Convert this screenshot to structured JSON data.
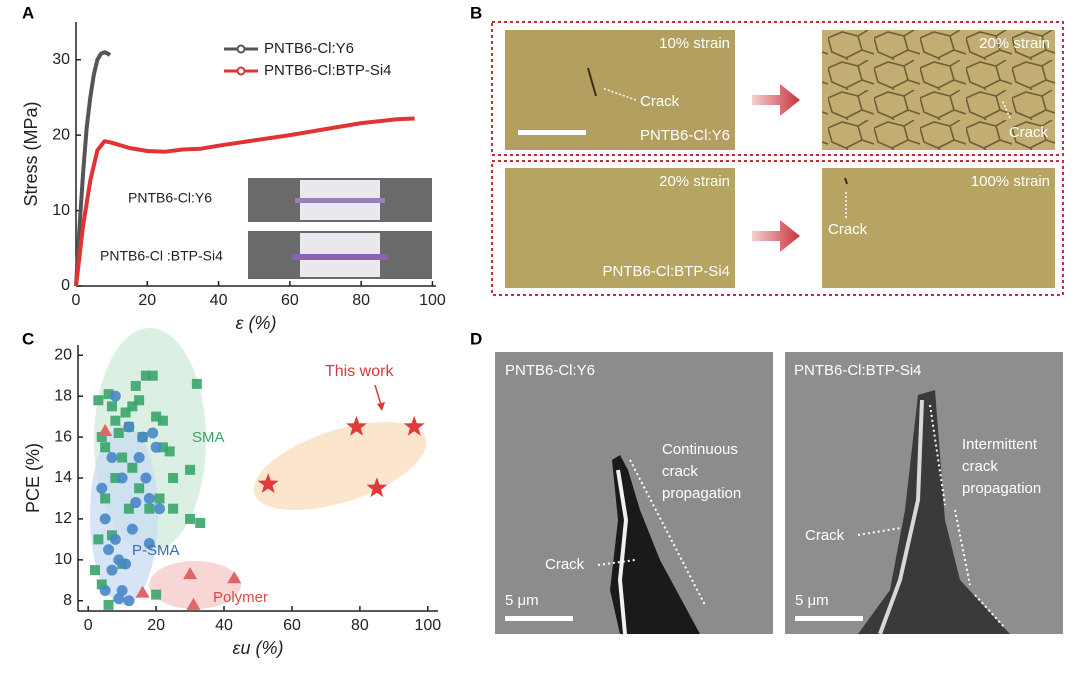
{
  "panel_labels": [
    "A",
    "B",
    "C",
    "D"
  ],
  "chart_data": [
    {
      "type": "line",
      "xlabel": "ε (%)",
      "ylabel": "Stress (MPa)",
      "xlim": [
        0,
        101
      ],
      "ylim": [
        0,
        35
      ],
      "xticks": [
        0,
        20,
        40,
        60,
        80,
        100
      ],
      "yticks": [
        0,
        10,
        20,
        30
      ],
      "legend": "upper right",
      "annotations": [
        "PNTB6-Cl:Y6",
        "PNTB6-Cl :BTP-Si4"
      ],
      "series": [
        {
          "name": "PNTB6-Cl:Y6",
          "color": "#555555",
          "x": [
            0,
            1,
            2,
            3,
            4,
            5,
            6,
            7,
            8,
            9,
            9.5
          ],
          "values": [
            0,
            8,
            15,
            21,
            25,
            28,
            30,
            30.8,
            31,
            30.8,
            30.6
          ]
        },
        {
          "name": "PNTB6-Cl:BTP-Si4",
          "color": "#e03434",
          "x": [
            0,
            2,
            4,
            6,
            8,
            10,
            15,
            20,
            25,
            30,
            35,
            40,
            50,
            60,
            70,
            80,
            90,
            95
          ],
          "values": [
            0,
            8,
            14,
            18,
            19.2,
            19,
            18.3,
            17.9,
            17.8,
            18.1,
            18.2,
            18.6,
            19.3,
            20,
            20.8,
            21.6,
            22.1,
            22.2
          ]
        }
      ]
    },
    {
      "type": "scatter",
      "xlabel": "εu (%)",
      "ylabel": "PCE (%)",
      "xlim": [
        -3,
        103
      ],
      "ylim": [
        7.5,
        20.5
      ],
      "xticks": [
        0,
        20,
        40,
        60,
        80,
        100
      ],
      "yticks": [
        8,
        10,
        12,
        14,
        16,
        18,
        20
      ],
      "series": [
        {
          "name": "SMA",
          "color": "#3aa46a",
          "marker": "square",
          "x": [
            3,
            4,
            5,
            6,
            7,
            8,
            9,
            10,
            11,
            12,
            13,
            14,
            15,
            16,
            17,
            19,
            20,
            22,
            24,
            25,
            30,
            32,
            33,
            30,
            21,
            18,
            15,
            12,
            8,
            5,
            3,
            2,
            4,
            6,
            10,
            20,
            25,
            7,
            22,
            13
          ],
          "values": [
            17.8,
            16,
            15.5,
            18.1,
            17.5,
            16.8,
            16.2,
            15,
            17.2,
            16.5,
            14.5,
            18.5,
            17.8,
            16,
            19,
            19,
            17,
            15.5,
            15.3,
            14,
            14.4,
            18.6,
            11.8,
            12,
            13,
            12.5,
            13.5,
            12.5,
            14,
            13,
            11,
            9.5,
            8.8,
            7.8,
            9.8,
            8.3,
            12.5,
            11.2,
            16.8,
            17.5
          ]
        },
        {
          "name": "P-SMA",
          "color": "#4a86c8",
          "marker": "circle",
          "x": [
            4,
            5,
            6,
            7,
            8,
            9,
            10,
            11,
            12,
            13,
            14,
            15,
            16,
            17,
            18,
            19,
            20,
            21,
            8,
            12,
            7,
            10,
            9,
            5,
            18
          ],
          "values": [
            13.5,
            12,
            10.5,
            9.5,
            11,
            10,
            8.5,
            9.8,
            8,
            11.5,
            12.8,
            15,
            16,
            14,
            13,
            16.2,
            15.5,
            12.5,
            18,
            16.5,
            15,
            14,
            8.1,
            8.5,
            10.8
          ]
        },
        {
          "name": "Polymer",
          "color": "#e06666",
          "marker": "triangle",
          "x": [
            5,
            16,
            30,
            31,
            43
          ],
          "values": [
            16.3,
            8.4,
            9.3,
            7.8,
            9.1
          ]
        },
        {
          "name": "This work",
          "color": "#e03a3a",
          "marker": "star",
          "x": [
            53,
            79,
            85,
            96
          ],
          "values": [
            13.7,
            16.5,
            13.5,
            16.5
          ]
        }
      ]
    }
  ],
  "panel_b": {
    "images": [
      {
        "strain": "10% strain",
        "crack": "Crack",
        "sample": "PNTB6-Cl:Y6"
      },
      {
        "strain": "20% strain",
        "crack": "Crack"
      },
      {
        "strain": "20% strain",
        "sample": "PNTB6-Cl:BTP-Si4"
      },
      {
        "strain": "100% strain",
        "crack": "Crack"
      }
    ]
  },
  "panel_d": {
    "images": [
      {
        "sample": "PNTB6-Cl:Y6",
        "note": [
          "Continuous",
          "crack",
          "propagation"
        ],
        "crack": "Crack",
        "scale": "5 μm"
      },
      {
        "sample": "PNTB6-Cl:BTP-Si4",
        "note": [
          "Intermittent",
          "crack",
          "propagation"
        ],
        "crack": "Crack",
        "scale": "5 μm"
      }
    ]
  }
}
